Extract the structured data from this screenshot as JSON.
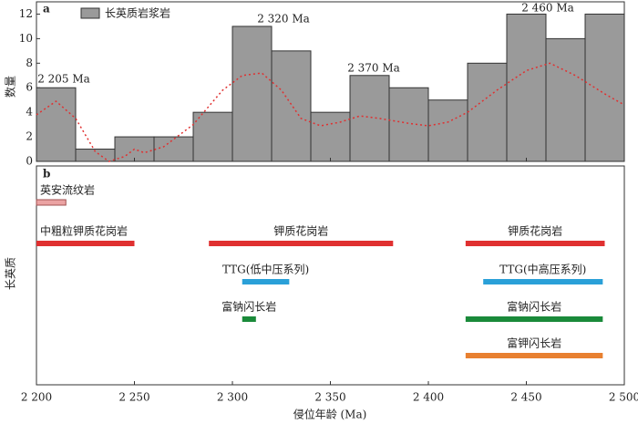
{
  "chart_data": [
    {
      "type": "histogram",
      "panel_label": "a",
      "y_label": "数量",
      "legend": "长英质岩浆岩",
      "color": "#9a9a9a",
      "bins": [
        2200,
        2220,
        2240,
        2260,
        2280,
        2300,
        2320,
        2340,
        2360,
        2380,
        2400,
        2420,
        2440,
        2460,
        2480,
        2500
      ],
      "values": [
        6,
        1,
        2,
        2,
        4,
        11,
        9,
        4,
        7,
        6,
        5,
        8,
        12,
        10,
        12
      ],
      "curve": {
        "color": "#e03030",
        "x": [
          2200,
          2210,
          2220,
          2230,
          2237,
          2245,
          2250,
          2255,
          2265,
          2280,
          2295,
          2305,
          2315,
          2325,
          2335,
          2345,
          2355,
          2365,
          2375,
          2390,
          2400,
          2410,
          2420,
          2435,
          2450,
          2462,
          2475,
          2490,
          2500
        ],
        "y": [
          3.8,
          4.9,
          3.5,
          0.8,
          0,
          0.4,
          1.0,
          0.7,
          1.2,
          3.0,
          5.8,
          7.0,
          7.2,
          5.8,
          3.5,
          2.9,
          3.2,
          3.7,
          3.5,
          3.1,
          2.9,
          3.2,
          4.0,
          5.8,
          7.4,
          8.0,
          7.0,
          5.5,
          4.6
        ]
      },
      "annotations": [
        "2 205 Ma",
        "2 320 Ma",
        "2 370 Ma",
        "2 460 Ma"
      ],
      "xlim": [
        2200,
        2500
      ],
      "ylim": [
        0,
        13
      ],
      "yticks": [
        0,
        2,
        4,
        6,
        8,
        10,
        12
      ]
    },
    {
      "type": "range",
      "panel_label": "b",
      "y_label": "长英质",
      "x_label": "侵位年龄 (Ma)",
      "xlim": [
        2200,
        2500
      ],
      "xticks": [
        {
          "value": 2200,
          "label": "2 200"
        },
        {
          "value": 2250,
          "label": "2 250"
        },
        {
          "value": 2300,
          "label": "2 300"
        },
        {
          "value": 2350,
          "label": "2 350"
        },
        {
          "value": 2400,
          "label": "2 400"
        },
        {
          "value": 2450,
          "label": "2 450"
        },
        {
          "value": 2500,
          "label": "2 500"
        }
      ],
      "bars": [
        {
          "name": "英安流纹岩",
          "start": 2200,
          "end": 2215,
          "color": "#eba3a3"
        },
        {
          "name": "中粗粒钾质花岗岩",
          "start": 2200,
          "end": 2250,
          "color": "#e03030"
        },
        {
          "name": "钾质花岗岩",
          "start": 2288,
          "end": 2382,
          "color": "#e03030"
        },
        {
          "name": "钾质花岗岩",
          "start": 2419,
          "end": 2490,
          "color": "#e03030"
        },
        {
          "name": "TTG(低中压系列)",
          "start": 2305,
          "end": 2329,
          "color": "#2aa0d8"
        },
        {
          "name": "TTG(中高压系列)",
          "start": 2428,
          "end": 2489,
          "color": "#2aa0d8"
        },
        {
          "name": "富钠闪长岩",
          "start": 2305,
          "end": 2312,
          "color": "#1a8a3a"
        },
        {
          "name": "富钠闪长岩",
          "start": 2419,
          "end": 2489,
          "color": "#1a8a3a"
        },
        {
          "name": "富钾闪长岩",
          "start": 2419,
          "end": 2489,
          "color": "#e88030"
        }
      ]
    }
  ]
}
